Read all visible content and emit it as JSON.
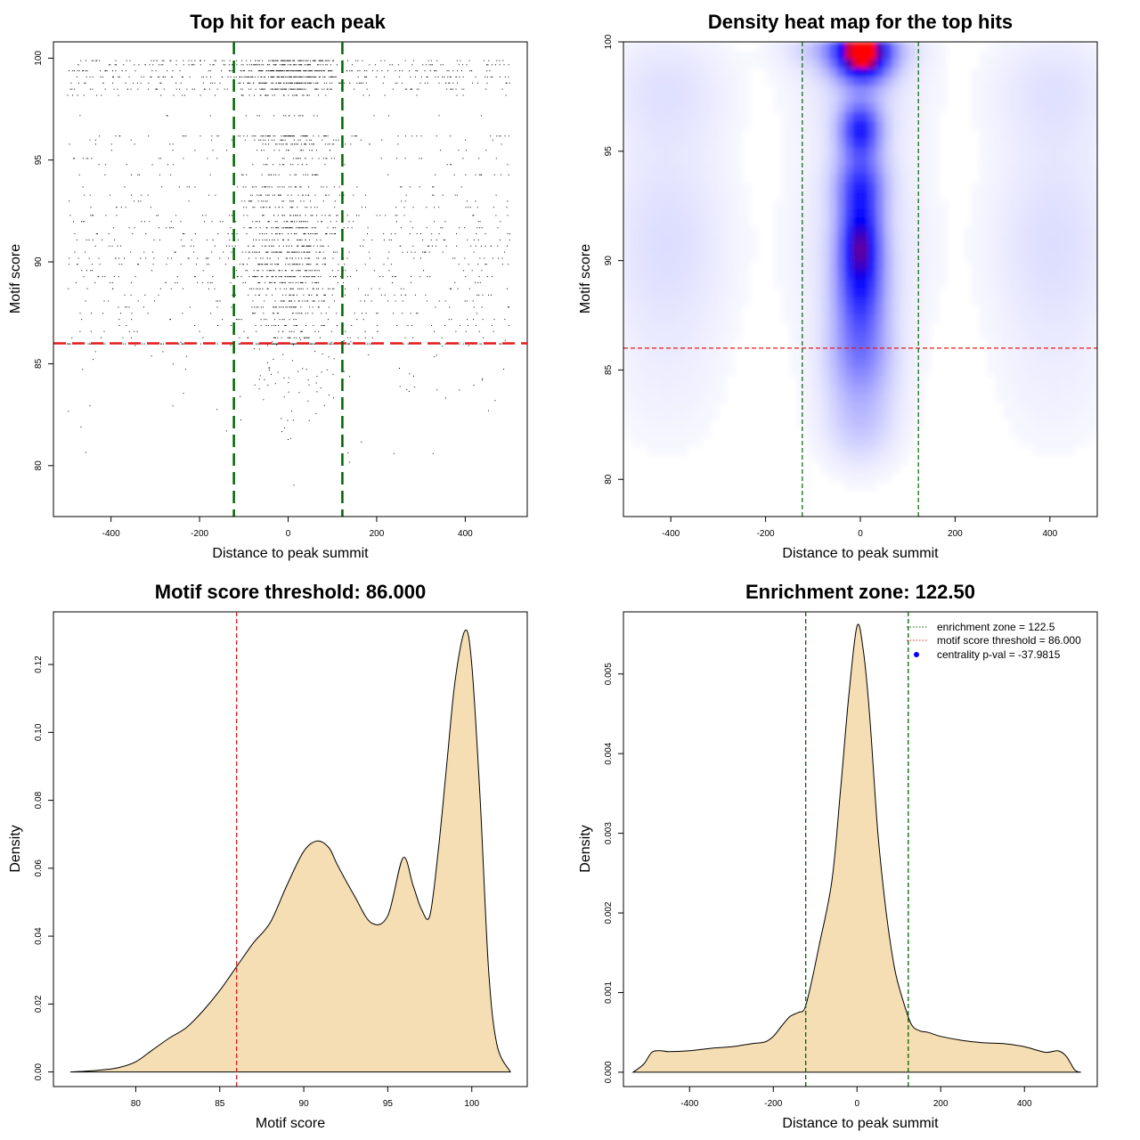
{
  "colors": {
    "threshold_line": "#e31a1c",
    "zone_line": "#006400",
    "density_fill": "#f5deb3",
    "point": "#000000",
    "heat_low": "#ffffff",
    "heat_mid": "#0000ff",
    "heat_high": "#ff0000",
    "legend_point": "#0000ff"
  },
  "chart_data": [
    {
      "id": "scatter",
      "type": "scatter",
      "title": "Top hit for each peak",
      "xlabel": "Distance to peak summit",
      "ylabel": "Motif score",
      "xlim": [
        -530,
        540
      ],
      "ylim": [
        77.5,
        100.8
      ],
      "xticks": [
        -400,
        -200,
        0,
        200,
        400
      ],
      "yticks": [
        80,
        85,
        90,
        95,
        100
      ],
      "threshold": 86.0,
      "enrichment_zone": [
        -122.5,
        122.5
      ],
      "score_levels": [
        99.9,
        99.7,
        99.4,
        99.1,
        98.8,
        98.5,
        98.2,
        97.2,
        96.2,
        96.0,
        95.8,
        95.5,
        95.1,
        94.8,
        94.3,
        93.7,
        93.3,
        93.0,
        92.7,
        92.3,
        92.0,
        91.7,
        91.4,
        91.1,
        90.8,
        90.5,
        90.2,
        89.9,
        89.6,
        89.3,
        89.0,
        88.7,
        88.4,
        88.1,
        87.8,
        87.5,
        87.2,
        86.9,
        86.6,
        86.3,
        86.0
      ],
      "note": "Approximately 4000 points; score mixture (peak near 99.5, 96, 91) with distance concentrated within ±100 of the summit and a flat background across ±500."
    },
    {
      "id": "heatmap",
      "type": "heatmap",
      "title": "Density heat map for the top hits",
      "xlabel": "Distance to peak summit",
      "ylabel": "Motif score",
      "xlim": [
        -500,
        500
      ],
      "ylim": [
        78.3,
        100
      ],
      "xticks": [
        -400,
        -200,
        0,
        200,
        400
      ],
      "yticks": [
        80,
        85,
        90,
        95,
        100
      ],
      "threshold": 86.0,
      "enrichment_zone": [
        -122.5,
        122.5
      ],
      "density_peaks": [
        {
          "x": 5,
          "y": 99.5,
          "level": "high"
        },
        {
          "x": 0,
          "y": 96.0,
          "level": "medium"
        },
        {
          "x": 0,
          "y": 91.0,
          "level": "medium"
        }
      ]
    },
    {
      "id": "score_density",
      "type": "area",
      "title": "Motif score threshold: 86.000",
      "xlabel": "Motif score",
      "ylabel": "Density",
      "xlim": [
        75.1,
        103.3
      ],
      "ylim": [
        -0.0043,
        0.1355
      ],
      "xticks": [
        80,
        85,
        90,
        95,
        100
      ],
      "yticks": [
        0.0,
        0.02,
        0.04,
        0.06,
        0.08,
        0.1,
        0.12
      ],
      "ytick_labels": [
        "0.00",
        "0.02",
        "0.04",
        "0.06",
        "0.08",
        "0.10",
        "0.12"
      ],
      "threshold": 86.0,
      "x": [
        76.1,
        77,
        78,
        79,
        80,
        81,
        82,
        83,
        84,
        85,
        86,
        87,
        88,
        89,
        90,
        90.8,
        91.5,
        92,
        93,
        94,
        95,
        95.9,
        96.5,
        97,
        97.5,
        98,
        98.5,
        99,
        99.6,
        100,
        100.5,
        101,
        101.5,
        102.3
      ],
      "y": [
        0.0,
        0.0002,
        0.0006,
        0.0013,
        0.003,
        0.0065,
        0.01,
        0.013,
        0.018,
        0.024,
        0.031,
        0.038,
        0.044,
        0.055,
        0.065,
        0.068,
        0.066,
        0.061,
        0.052,
        0.044,
        0.046,
        0.063,
        0.055,
        0.048,
        0.046,
        0.065,
        0.09,
        0.115,
        0.13,
        0.12,
        0.08,
        0.03,
        0.008,
        0.0
      ]
    },
    {
      "id": "distance_density",
      "type": "area",
      "title": "Enrichment zone: 122.50",
      "xlabel": "Distance to peak summit",
      "ylabel": "Density",
      "xlim": [
        -558,
        574
      ],
      "ylim": [
        -0.00018,
        0.00578
      ],
      "xticks": [
        -400,
        -200,
        0,
        200,
        400
      ],
      "yticks": [
        0.0,
        0.001,
        0.002,
        0.003,
        0.004,
        0.005
      ],
      "ytick_labels": [
        "0.000",
        "0.001",
        "0.002",
        "0.003",
        "0.004",
        "0.005"
      ],
      "enrichment_zone": [
        -122.5,
        122.5
      ],
      "x": [
        -535,
        -510,
        -490,
        -470,
        -450,
        -400,
        -350,
        -300,
        -250,
        -220,
        -200,
        -180,
        -160,
        -140,
        -125,
        -110,
        -90,
        -60,
        -40,
        -20,
        0,
        15,
        30,
        50,
        70,
        90,
        110,
        130,
        150,
        170,
        200,
        250,
        300,
        350,
        400,
        450,
        480,
        500,
        520,
        535
      ],
      "y": [
        0.0,
        0.0001,
        0.00025,
        0.00027,
        0.00026,
        0.00027,
        0.0003,
        0.00032,
        0.00036,
        0.00038,
        0.00045,
        0.00058,
        0.0007,
        0.00075,
        0.0008,
        0.0011,
        0.0016,
        0.0024,
        0.0035,
        0.0047,
        0.0056,
        0.0053,
        0.0045,
        0.003,
        0.002,
        0.0013,
        0.0009,
        0.0006,
        0.00052,
        0.0005,
        0.00045,
        0.0004,
        0.00037,
        0.00036,
        0.00032,
        0.00025,
        0.00027,
        0.0002,
        3e-05,
        0.0
      ],
      "legend": {
        "position": "top-right",
        "items": [
          {
            "label": "enrichment zone = 122.5",
            "kind": "line",
            "style": "dotted",
            "color": "#006400"
          },
          {
            "label": "motif score threshold = 86.000",
            "kind": "line",
            "style": "dotted",
            "color": "#e31a1c"
          },
          {
            "label": "centrality p-val = -37.9815",
            "kind": "point",
            "color": "#0000ff"
          }
        ]
      }
    }
  ]
}
